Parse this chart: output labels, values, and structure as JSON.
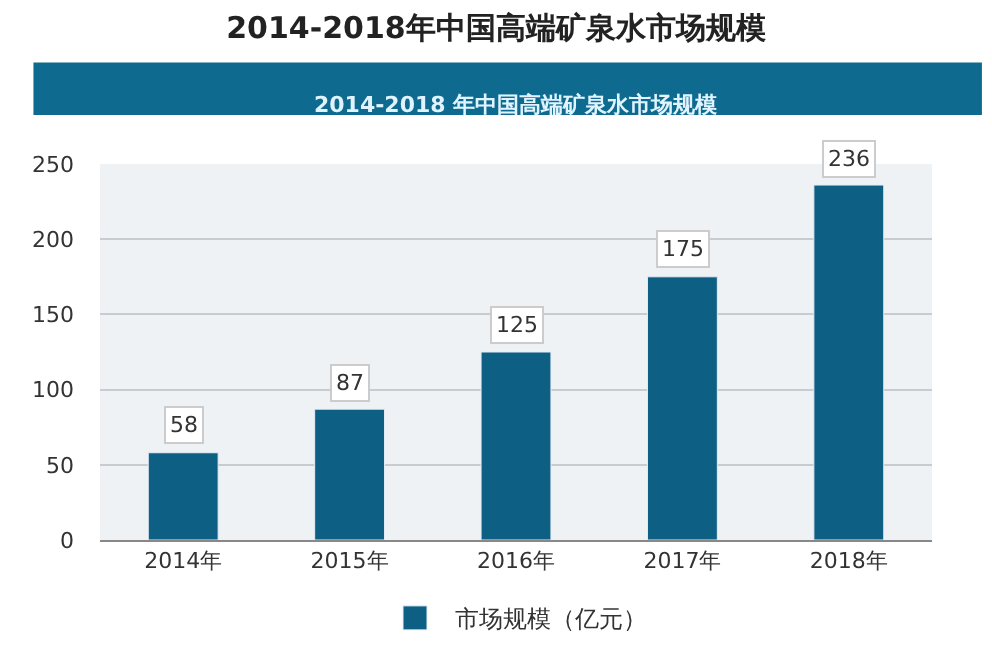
{
  "chart_data": {
    "type": "bar",
    "title": "2014-2018年中国高端矿泉水市场规模",
    "subtitle": "2014-2018 年中国高端矿泉水市场规模",
    "categories": [
      "2014年",
      "2015年",
      "2016年",
      "2017年",
      "2018年"
    ],
    "series": [
      {
        "name": "市场规模（亿元）",
        "color": "#0e5f84",
        "values": [
          58,
          87,
          125,
          175,
          236
        ]
      }
    ],
    "ylim": [
      0,
      250
    ],
    "yticks": [
      0,
      50,
      100,
      150,
      200,
      250
    ],
    "grid": "y",
    "legend": "bottom",
    "data_labels": true
  }
}
